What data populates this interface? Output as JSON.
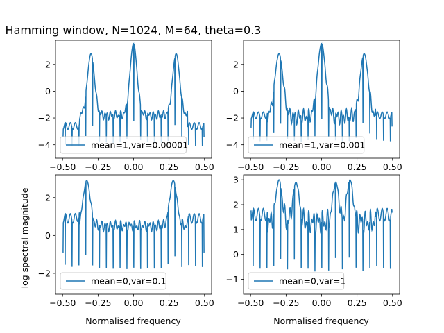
{
  "figure": {
    "title": "Hamming window, N=1024, M=64, theta=0.3",
    "xlabel": "Normalised frequency",
    "ylabel": "log spectral magnitude",
    "line_color": "#1f77b4"
  },
  "chart_data": [
    {
      "type": "line",
      "legend": "mean=1,var=0.00001",
      "legend_loc": "lower-left",
      "xlim": [
        -0.55,
        0.55
      ],
      "ylim": [
        -5.0,
        3.8
      ],
      "xticks": [
        -0.5,
        -0.25,
        0.0,
        0.25,
        0.5
      ],
      "xtick_labels": [
        "−0.50",
        "−0.25",
        "0.00",
        "0.25",
        "0.50"
      ],
      "yticks": [
        -4,
        -2,
        0,
        2
      ],
      "ytick_labels": [
        "−4",
        "−2",
        "0",
        "2"
      ],
      "series": [
        {
          "peaks": [
            [
              -0.3,
              2.8
            ],
            [
              0.0,
              3.55
            ],
            [
              0.3,
              2.8
            ]
          ],
          "peak_width": 0.035,
          "floor": -1.8,
          "floor_ripple": 0.35,
          "notch_depth": -4.7,
          "edge_values": [
            -3.4,
            -3.4
          ],
          "outer_level": -2.6
        }
      ]
    },
    {
      "type": "line",
      "legend": "mean=1,var=0.001",
      "legend_loc": "lower-left",
      "xlim": [
        -0.55,
        0.55
      ],
      "ylim": [
        -5.0,
        3.8
      ],
      "xticks": [
        -0.5,
        -0.25,
        0.0,
        0.25,
        0.5
      ],
      "xtick_labels": [
        "−0.50",
        "−0.25",
        "0.00",
        "0.25",
        "0.50"
      ],
      "yticks": [
        -4,
        -2,
        0,
        2
      ],
      "ytick_labels": [
        "−4",
        "−2",
        "0",
        "2"
      ],
      "series": [
        {
          "peaks": [
            [
              -0.3,
              2.8
            ],
            [
              0.0,
              3.55
            ],
            [
              0.3,
              2.8
            ]
          ],
          "peak_width": 0.04,
          "floor": -1.9,
          "floor_ripple": 0.6,
          "notch_depth": -4.5,
          "edge_values": [
            -2.7,
            -2.6
          ],
          "outer_level": -1.8
        }
      ]
    },
    {
      "type": "line",
      "legend": "mean=0,var=0.1",
      "legend_loc": "lower-left",
      "xlim": [
        -0.55,
        0.55
      ],
      "ylim": [
        -3.1,
        3.2
      ],
      "xticks": [
        -0.5,
        -0.25,
        0.0,
        0.25,
        0.5
      ],
      "xtick_labels": [
        "−0.50",
        "−0.25",
        "0.00",
        "0.25",
        "0.50"
      ],
      "yticks": [
        -2,
        0,
        2
      ],
      "ytick_labels": [
        "−2",
        "0",
        "2"
      ],
      "series": [
        {
          "peaks": [
            [
              -0.33,
              2.9
            ],
            [
              0.28,
              2.9
            ]
          ],
          "peak_width": 0.035,
          "floor": 0.5,
          "floor_ripple": 0.3,
          "notch_depth": -2.7,
          "edge_values": [
            -0.9,
            -0.9
          ],
          "outer_level": 0.9
        }
      ]
    },
    {
      "type": "line",
      "legend": "mean=0,var=1",
      "legend_loc": "lower-left",
      "xlim": [
        -0.55,
        0.55
      ],
      "ylim": [
        -1.6,
        3.2
      ],
      "xticks": [
        -0.5,
        -0.25,
        0.0,
        0.25,
        0.5
      ],
      "xtick_labels": [
        "−0.50",
        "−0.25",
        "0.00",
        "0.25",
        "0.50"
      ],
      "yticks": [
        -1,
        0,
        1,
        2,
        3
      ],
      "ytick_labels": [
        "−1",
        "0",
        "1",
        "2",
        "3"
      ],
      "series": [
        {
          "peaks": [
            [
              -0.3,
              3.0
            ],
            [
              -0.18,
              2.9
            ],
            [
              0.1,
              2.9
            ],
            [
              0.2,
              3.0
            ]
          ],
          "peak_width": 0.03,
          "floor": 1.3,
          "floor_ripple": 0.5,
          "notch_depth": -1.45,
          "edge_values": [
            1.75,
            1.7
          ],
          "outer_level": 1.6
        }
      ]
    }
  ]
}
